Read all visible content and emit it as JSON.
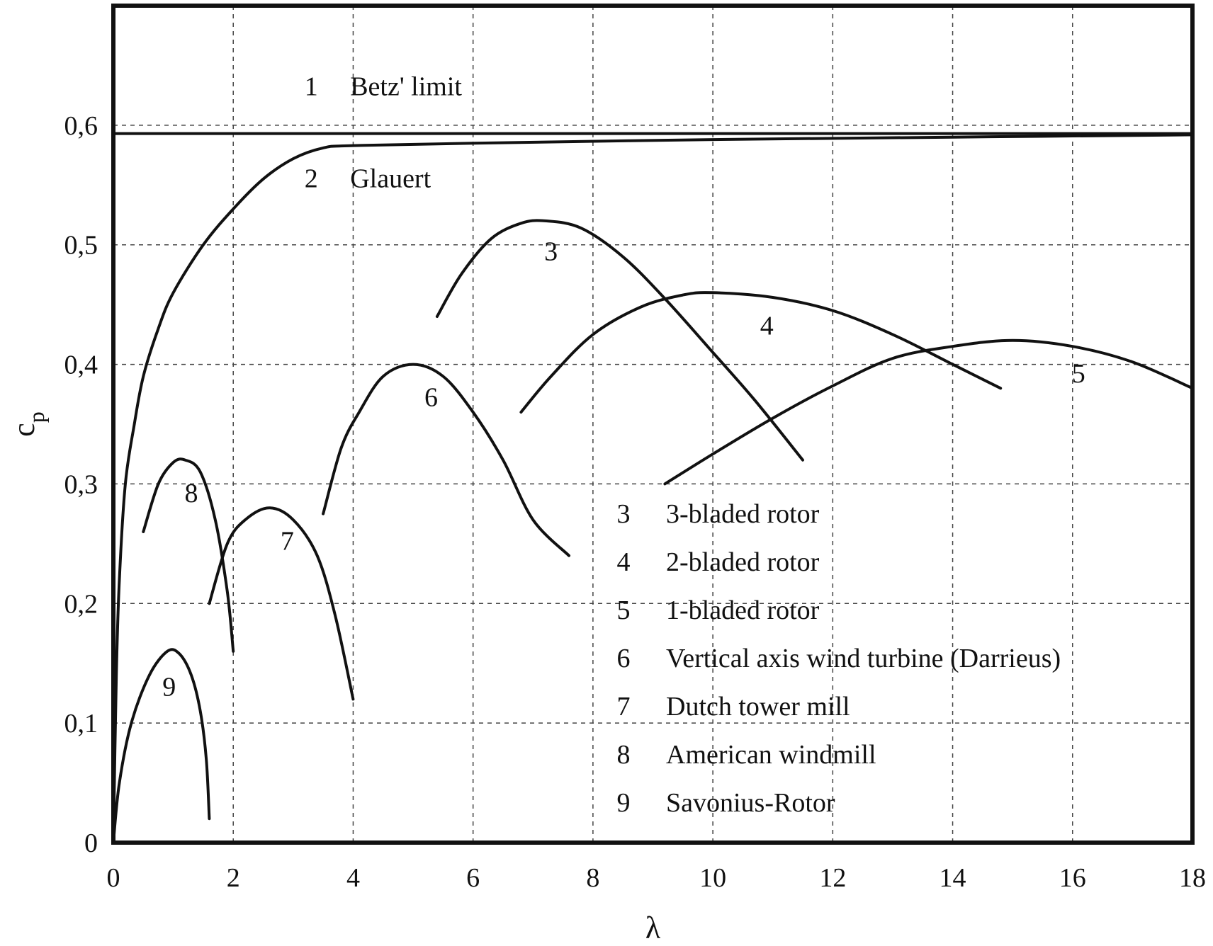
{
  "chart_data": {
    "type": "line",
    "xlabel": "λ",
    "ylabel": "c",
    "ylabel_sub": "p",
    "xlim": [
      0,
      18
    ],
    "ylim": [
      0,
      0.7
    ],
    "x_ticks": [
      {
        "value": 0,
        "label": "0"
      },
      {
        "value": 2,
        "label": "2"
      },
      {
        "value": 4,
        "label": "4"
      },
      {
        "value": 6,
        "label": "6"
      },
      {
        "value": 8,
        "label": "8"
      },
      {
        "value": 10,
        "label": "10"
      },
      {
        "value": 12,
        "label": "12"
      },
      {
        "value": 14,
        "label": "14"
      },
      {
        "value": 16,
        "label": "16"
      },
      {
        "value": 18,
        "label": "18"
      }
    ],
    "y_ticks": [
      {
        "value": 0,
        "label": "0"
      },
      {
        "value": 0.1,
        "label": "0,1"
      },
      {
        "value": 0.2,
        "label": "0,2"
      },
      {
        "value": 0.3,
        "label": "0,3"
      },
      {
        "value": 0.4,
        "label": "0,4"
      },
      {
        "value": 0.5,
        "label": "0,5"
      },
      {
        "value": 0.6,
        "label": "0,6"
      }
    ],
    "grid": true,
    "reference_line": {
      "id": "1",
      "label": "Betz' limit",
      "y": 0.593
    },
    "series": [
      {
        "id": "2",
        "name": "Glauert",
        "label_at": [
          3.3,
          0.548
        ],
        "x": [
          0,
          0.05,
          0.1,
          0.2,
          0.35,
          0.5,
          0.75,
          1,
          1.5,
          2,
          2.5,
          3,
          3.5,
          4,
          6,
          10,
          14,
          18
        ],
        "y": [
          0,
          0.14,
          0.22,
          0.3,
          0.35,
          0.39,
          0.43,
          0.46,
          0.5,
          0.53,
          0.555,
          0.572,
          0.581,
          0.583,
          0.585,
          0.588,
          0.59,
          0.592
        ]
      },
      {
        "id": "3",
        "name": "3-bladed rotor",
        "label_at": [
          7.3,
          0.487
        ],
        "x": [
          5.4,
          5.8,
          6.3,
          6.8,
          7.2,
          7.8,
          8.5,
          9.2,
          10,
          10.7,
          11.5
        ],
        "y": [
          0.44,
          0.475,
          0.505,
          0.518,
          0.52,
          0.514,
          0.49,
          0.455,
          0.41,
          0.37,
          0.32
        ]
      },
      {
        "id": "4",
        "name": "2-bladed rotor",
        "label_at": [
          10.9,
          0.425
        ],
        "x": [
          6.8,
          7.3,
          8,
          8.8,
          9.5,
          10,
          11,
          12,
          13,
          14,
          14.8
        ],
        "y": [
          0.36,
          0.39,
          0.425,
          0.448,
          0.458,
          0.46,
          0.456,
          0.445,
          0.425,
          0.4,
          0.38
        ]
      },
      {
        "id": "5",
        "name": "1-bladed rotor",
        "label_at": [
          16.1,
          0.385
        ],
        "x": [
          9.2,
          10,
          11,
          12,
          13,
          14,
          15,
          16,
          17,
          18
        ],
        "y": [
          0.3,
          0.325,
          0.355,
          0.382,
          0.405,
          0.415,
          0.42,
          0.415,
          0.402,
          0.38
        ]
      },
      {
        "id": "6",
        "name": "Vertical axis wind turbine (Darrieus)",
        "label_at": [
          5.3,
          0.365
        ],
        "x": [
          3.5,
          3.8,
          4.1,
          4.5,
          5,
          5.5,
          6,
          6.5,
          7,
          7.6
        ],
        "y": [
          0.275,
          0.33,
          0.36,
          0.39,
          0.4,
          0.39,
          0.36,
          0.32,
          0.27,
          0.24
        ]
      },
      {
        "id": "7",
        "name": "Dutch tower mill",
        "label_at": [
          2.9,
          0.245
        ],
        "x": [
          1.6,
          1.9,
          2.2,
          2.6,
          3,
          3.4,
          3.7,
          4
        ],
        "y": [
          0.2,
          0.25,
          0.27,
          0.28,
          0.27,
          0.24,
          0.19,
          0.12
        ]
      },
      {
        "id": "8",
        "name": "American windmill",
        "label_at": [
          1.3,
          0.285
        ],
        "x": [
          0.5,
          0.75,
          1,
          1.2,
          1.45,
          1.7,
          1.9,
          2
        ],
        "y": [
          0.26,
          0.3,
          0.318,
          0.32,
          0.31,
          0.27,
          0.21,
          0.16
        ]
      },
      {
        "id": "9",
        "name": "Savonius-Rotor",
        "label_at": [
          0.93,
          0.123
        ],
        "x": [
          0,
          0.1,
          0.3,
          0.6,
          0.9,
          1.1,
          1.3,
          1.45,
          1.55,
          1.6
        ],
        "y": [
          0,
          0.05,
          0.1,
          0.14,
          0.16,
          0.158,
          0.14,
          0.11,
          0.07,
          0.02
        ]
      }
    ],
    "legend": {
      "placement": "bottom-right",
      "entries": [
        {
          "num": "3",
          "text": "3-bladed rotor"
        },
        {
          "num": "4",
          "text": "2-bladed rotor"
        },
        {
          "num": "5",
          "text": "1-bladed rotor"
        },
        {
          "num": "6",
          "text": "Vertical axis wind turbine (Darrieus)"
        },
        {
          "num": "7",
          "text": "Dutch tower mill"
        },
        {
          "num": "8",
          "text": "American windmill"
        },
        {
          "num": "9",
          "text": "Savonius-Rotor"
        }
      ]
    },
    "colors": {
      "line": "#111111",
      "grid": "#444444",
      "background": "#ffffff"
    }
  }
}
